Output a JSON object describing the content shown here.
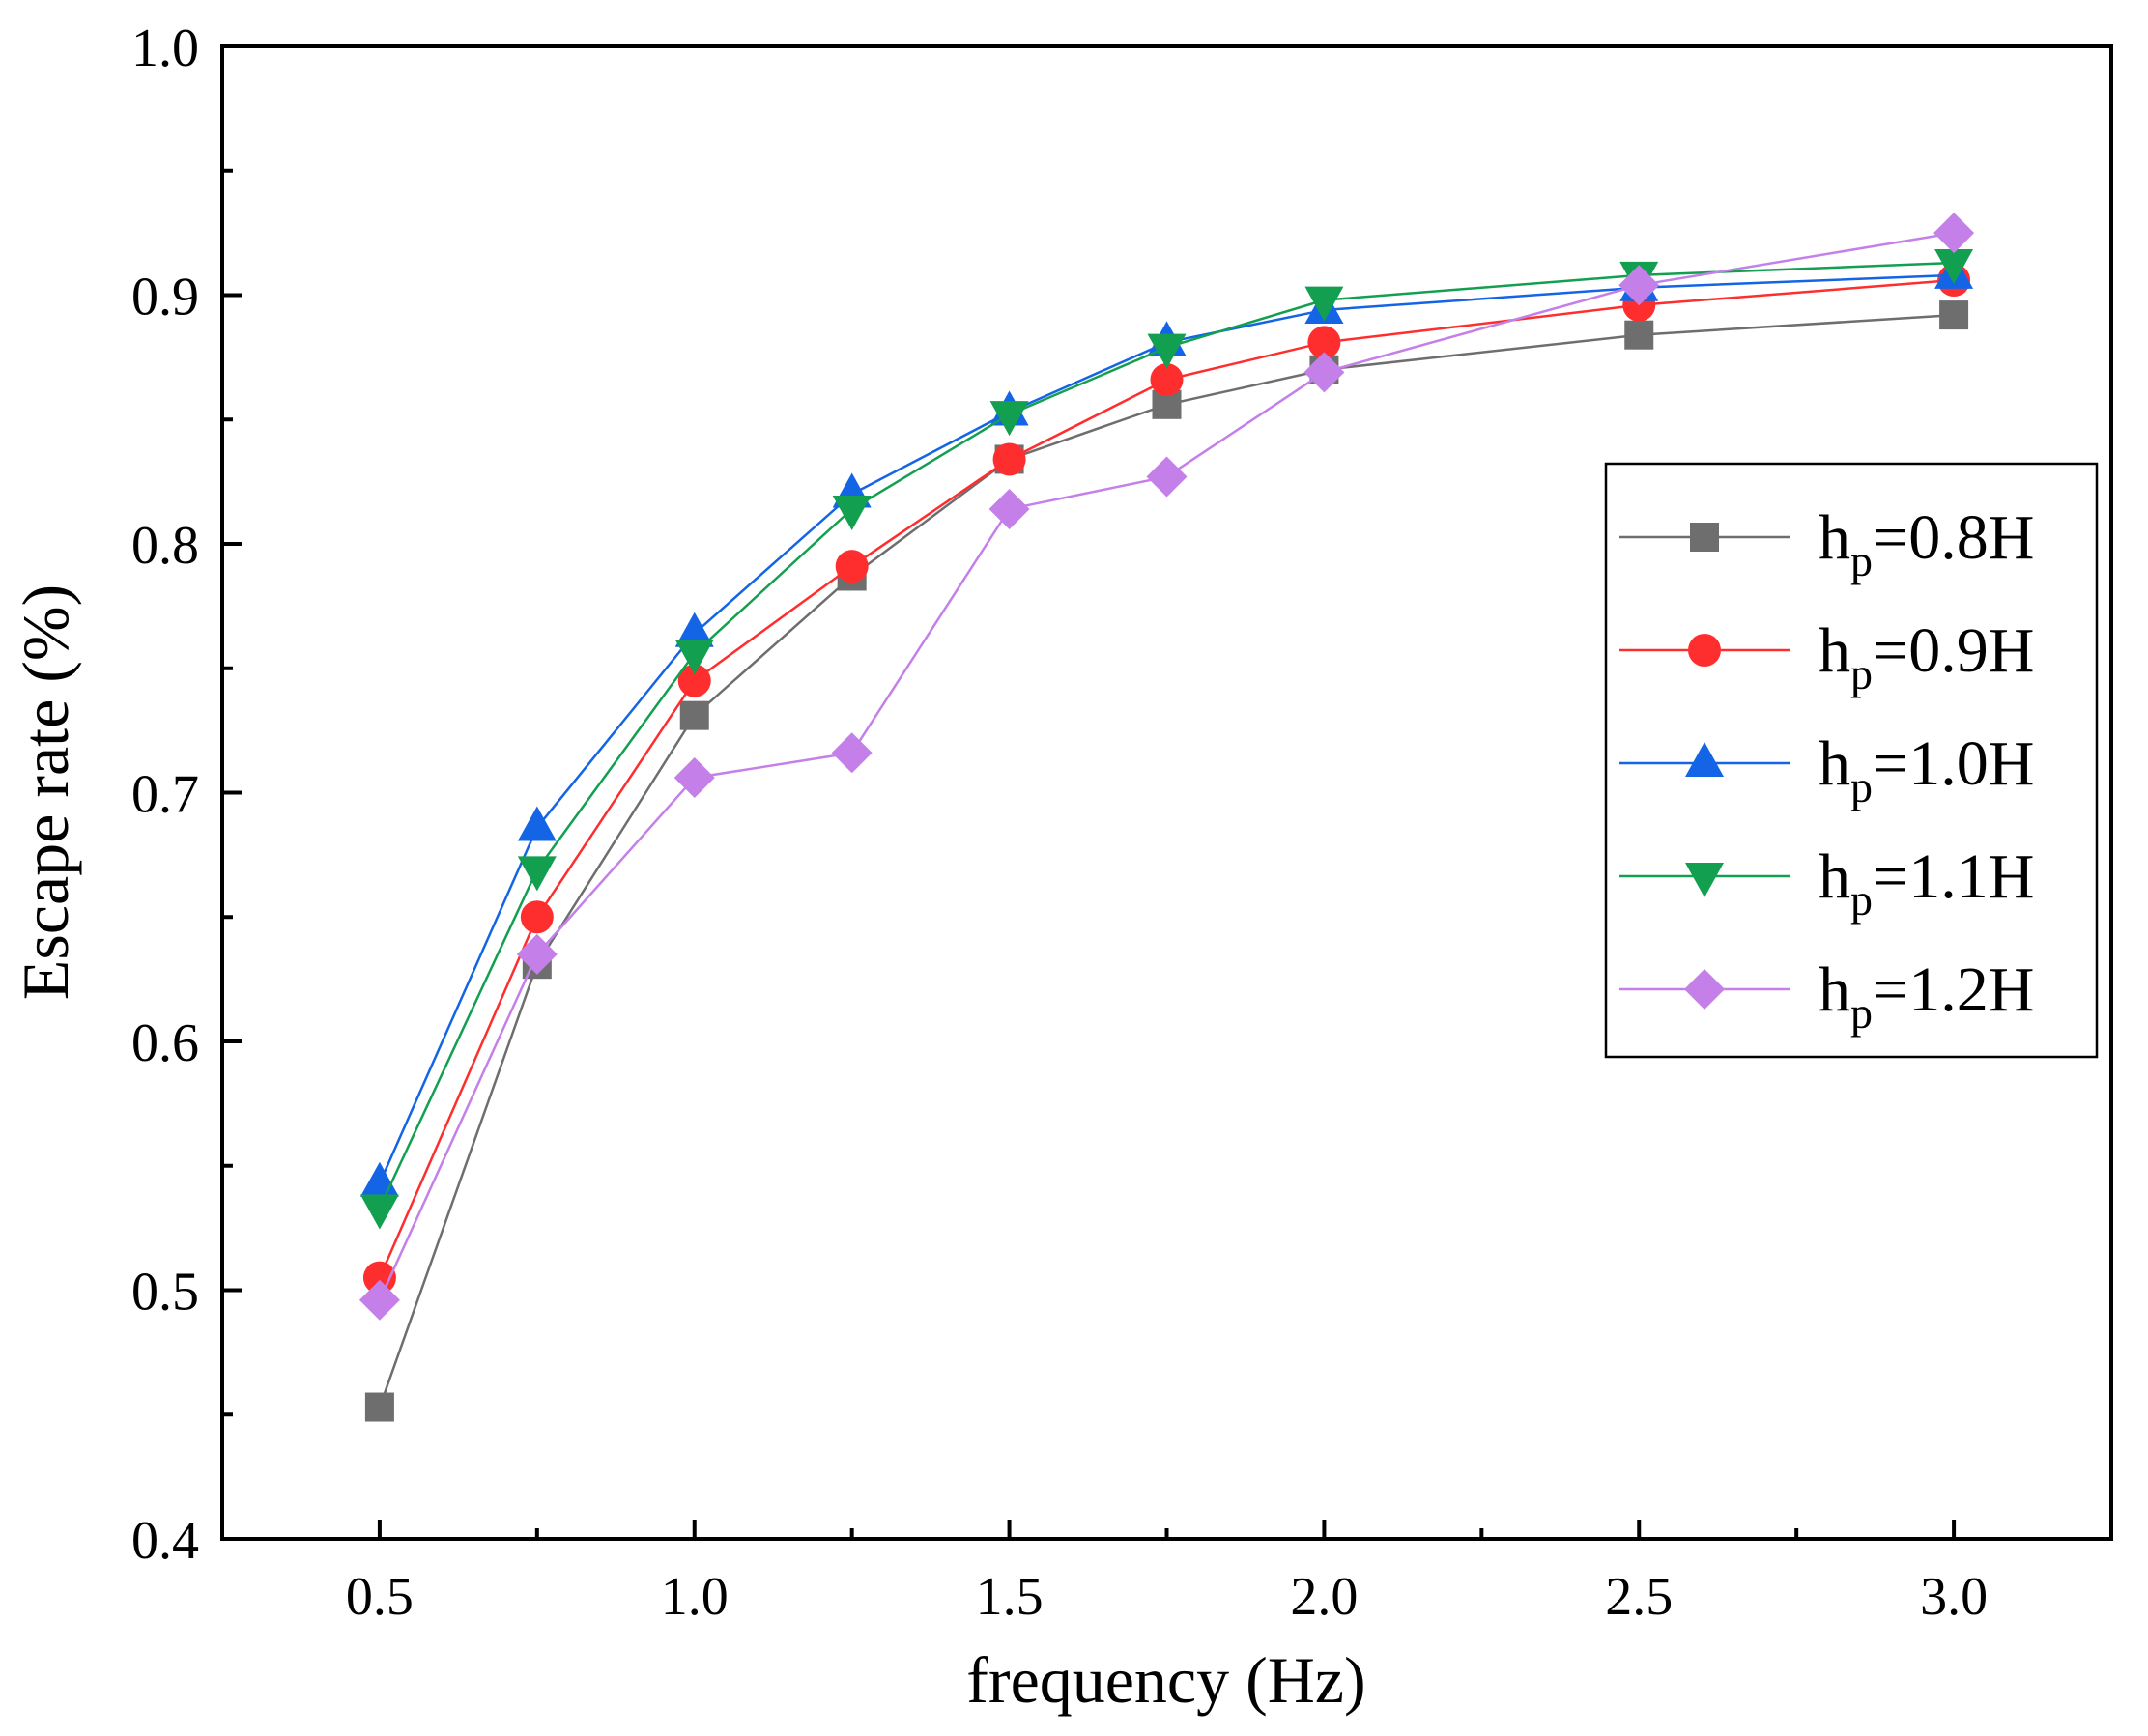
{
  "chart_data": {
    "type": "line",
    "title": "",
    "xlabel": "frequency (Hz)",
    "ylabel": "Escape rate (%)",
    "xlim": [
      0.25,
      3.25
    ],
    "ylim": [
      0.4,
      1.0
    ],
    "xticks": [
      0.5,
      1.0,
      1.5,
      2.0,
      2.5,
      3.0
    ],
    "xtick_labels": [
      "0.5",
      "1.0",
      "1.5",
      "2.0",
      "2.5",
      "3.0"
    ],
    "yticks": [
      0.4,
      0.5,
      0.6,
      0.7,
      0.8,
      0.9,
      1.0
    ],
    "ytick_labels": [
      "0.4",
      "0.5",
      "0.6",
      "0.7",
      "0.8",
      "0.9",
      "1.0"
    ],
    "grid": false,
    "legend_position": "right",
    "x": [
      0.5,
      0.75,
      1.0,
      1.25,
      1.5,
      1.75,
      2.0,
      2.5,
      3.0
    ],
    "series": [
      {
        "name": "hp=0.8H",
        "label_main": "h",
        "label_sub": "p",
        "label_rest": "=0.8H",
        "color": "#6e6e6e",
        "marker": "square",
        "values": [
          0.453,
          0.631,
          0.731,
          0.787,
          0.834,
          0.856,
          0.87,
          0.884,
          0.892
        ]
      },
      {
        "name": "hp=0.9H",
        "label_main": "h",
        "label_sub": "p",
        "label_rest": "=0.9H",
        "color": "#ff2e2e",
        "marker": "circle",
        "values": [
          0.505,
          0.65,
          0.745,
          0.791,
          0.834,
          0.866,
          0.881,
          0.896,
          0.906
        ]
      },
      {
        "name": "hp=1.0H",
        "label_main": "h",
        "label_sub": "p",
        "label_rest": "=1.0H",
        "color": "#1464e6",
        "marker": "triangle-up",
        "values": [
          0.543,
          0.686,
          0.764,
          0.82,
          0.853,
          0.881,
          0.894,
          0.903,
          0.908
        ]
      },
      {
        "name": "hp=1.1H",
        "label_main": "h",
        "label_sub": "p",
        "label_rest": "=1.1H",
        "color": "#12a050",
        "marker": "triangle-down",
        "values": [
          0.533,
          0.669,
          0.756,
          0.814,
          0.852,
          0.879,
          0.898,
          0.908,
          0.913
        ]
      },
      {
        "name": "hp=1.2H",
        "label_main": "h",
        "label_sub": "p",
        "label_rest": "=1.2H",
        "color": "#c480e8",
        "marker": "diamond",
        "values": [
          0.496,
          0.635,
          0.706,
          0.716,
          0.814,
          0.827,
          0.869,
          0.904,
          0.925
        ]
      }
    ]
  }
}
